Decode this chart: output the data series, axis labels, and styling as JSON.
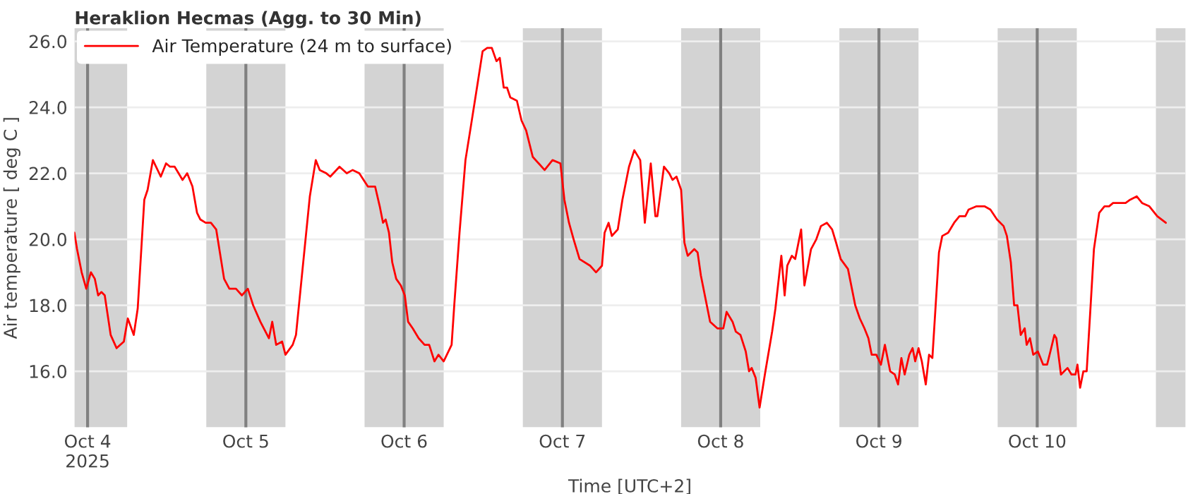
{
  "chart_data": {
    "type": "line",
    "title": "Heraklion Hecmas (Agg. to 30 Min)",
    "xlabel": "Time [UTC+2]",
    "ylabel": "Air temperature [ deg C ]",
    "series": [
      {
        "name": "Air Temperature (24 m to surface)",
        "color": "#ff0000",
        "x": [
          "2025-10-03T22:00",
          "2025-10-03T22:24",
          "2025-10-03T23:06",
          "2025-10-03T23:48",
          "2025-10-04T00:30",
          "2025-10-04T01:06",
          "2025-10-04T01:36",
          "2025-10-04T02:06",
          "2025-10-04T02:36",
          "2025-10-04T03:30",
          "2025-10-04T04:24",
          "2025-10-04T05:30",
          "2025-10-04T06:06",
          "2025-10-04T07:00",
          "2025-10-04T07:36",
          "2025-10-04T08:36",
          "2025-10-04T09:06",
          "2025-10-04T09:54",
          "2025-10-04T11:06",
          "2025-10-04T11:54",
          "2025-10-04T12:30",
          "2025-10-04T13:12",
          "2025-10-04T14:24",
          "2025-10-04T15:06",
          "2025-10-04T15:54",
          "2025-10-04T16:36",
          "2025-10-04T17:06",
          "2025-10-04T17:54",
          "2025-10-04T18:42",
          "2025-10-04T19:30",
          "2025-10-04T20:42",
          "2025-10-04T21:30",
          "2025-10-04T22:30",
          "2025-10-04T23:24",
          "2025-10-05T00:18",
          "2025-10-05T01:06",
          "2025-10-05T02:12",
          "2025-10-05T03:30",
          "2025-10-05T04:00",
          "2025-10-05T04:36",
          "2025-10-05T05:30",
          "2025-10-05T06:00",
          "2025-10-05T07:06",
          "2025-10-05T07:36",
          "2025-10-05T08:30",
          "2025-10-05T09:42",
          "2025-10-05T10:36",
          "2025-10-05T11:12",
          "2025-10-05T12:12",
          "2025-10-05T12:48",
          "2025-10-05T14:12",
          "2025-10-05T15:18",
          "2025-10-05T16:12",
          "2025-10-05T17:12",
          "2025-10-05T18:30",
          "2025-10-05T19:36",
          "2025-10-05T20:18",
          "2025-10-05T20:48",
          "2025-10-05T21:12",
          "2025-10-05T21:42",
          "2025-10-05T22:12",
          "2025-10-05T22:48",
          "2025-10-05T23:30",
          "2025-10-06T00:06",
          "2025-10-06T00:36",
          "2025-10-06T01:18",
          "2025-10-06T02:12",
          "2025-10-06T03:06",
          "2025-10-06T03:48",
          "2025-10-06T04:36",
          "2025-10-06T05:12",
          "2025-10-06T06:00",
          "2025-10-06T07:12",
          "2025-10-06T07:36",
          "2025-10-06T08:24",
          "2025-10-06T09:18",
          "2025-10-06T10:06",
          "2025-10-06T11:12",
          "2025-10-06T11:54",
          "2025-10-06T12:36",
          "2025-10-06T13:18",
          "2025-10-06T14:00",
          "2025-10-06T14:30",
          "2025-10-06T15:06",
          "2025-10-06T15:36",
          "2025-10-06T16:06",
          "2025-10-06T17:06",
          "2025-10-06T17:48",
          "2025-10-06T18:30",
          "2025-10-06T19:30",
          "2025-10-06T20:24",
          "2025-10-06T21:18",
          "2025-10-06T22:30",
          "2025-10-06T23:42",
          "2025-10-07T00:18",
          "2025-10-07T01:00",
          "2025-10-07T01:42",
          "2025-10-07T02:36",
          "2025-10-07T04:12",
          "2025-10-07T05:06",
          "2025-10-07T06:00",
          "2025-10-07T06:24",
          "2025-10-07T07:00",
          "2025-10-07T07:30",
          "2025-10-07T08:24",
          "2025-10-07T09:06",
          "2025-10-07T10:06",
          "2025-10-07T10:54",
          "2025-10-07T11:48",
          "2025-10-07T12:30",
          "2025-10-07T13:24",
          "2025-10-07T14:06",
          "2025-10-07T14:24",
          "2025-10-07T15:24",
          "2025-10-07T16:12",
          "2025-10-07T16:42",
          "2025-10-07T17:18",
          "2025-10-07T18:00",
          "2025-10-07T18:30",
          "2025-10-07T19:00",
          "2025-10-07T20:00",
          "2025-10-07T20:30",
          "2025-10-07T21:00",
          "2025-10-07T21:42",
          "2025-10-07T22:24",
          "2025-10-07T23:30",
          "2025-10-08T00:24",
          "2025-10-08T00:54",
          "2025-10-08T01:48",
          "2025-10-08T02:18",
          "2025-10-08T03:00",
          "2025-10-08T03:48",
          "2025-10-08T04:18",
          "2025-10-08T04:42",
          "2025-10-08T05:18",
          "2025-10-08T05:54",
          "2025-10-08T06:42",
          "2025-10-08T07:48",
          "2025-10-08T08:18",
          "2025-10-08T09:12",
          "2025-10-08T09:42",
          "2025-10-08T10:06",
          "2025-10-08T10:48",
          "2025-10-08T11:18",
          "2025-10-08T12:12",
          "2025-10-08T12:42",
          "2025-10-08T13:42",
          "2025-10-08T14:30",
          "2025-10-08T15:12",
          "2025-10-08T16:06",
          "2025-10-08T16:54",
          "2025-10-08T17:30",
          "2025-10-08T18:12",
          "2025-10-08T19:18",
          "2025-10-08T20:24",
          "2025-10-08T21:06",
          "2025-10-08T21:48",
          "2025-10-08T22:24",
          "2025-10-08T22:54",
          "2025-10-08T23:36",
          "2025-10-09T00:18",
          "2025-10-09T00:54",
          "2025-10-09T01:42",
          "2025-10-09T02:24",
          "2025-10-09T02:54",
          "2025-10-09T03:24",
          "2025-10-09T03:54",
          "2025-10-09T04:36",
          "2025-10-09T05:06",
          "2025-10-09T05:30",
          "2025-10-09T06:00",
          "2025-10-09T06:30",
          "2025-10-09T07:06",
          "2025-10-09T07:36",
          "2025-10-09T08:06",
          "2025-10-09T09:06",
          "2025-10-09T09:36",
          "2025-10-09T10:30",
          "2025-10-09T11:24",
          "2025-10-09T12:12",
          "2025-10-09T13:06",
          "2025-10-09T13:36",
          "2025-10-09T14:48",
          "2025-10-09T16:00",
          "2025-10-09T16:54",
          "2025-10-09T17:54",
          "2025-10-09T18:54",
          "2025-10-09T19:24",
          "2025-10-09T20:00",
          "2025-10-09T20:30",
          "2025-10-09T21:00",
          "2025-10-09T21:30",
          "2025-10-09T22:06",
          "2025-10-09T22:24",
          "2025-10-09T22:54",
          "2025-10-09T23:24",
          "2025-10-10T00:06",
          "2025-10-10T00:54",
          "2025-10-10T01:30",
          "2025-10-10T02:00",
          "2025-10-10T02:36",
          "2025-10-10T02:54",
          "2025-10-10T03:36",
          "2025-10-10T04:06",
          "2025-10-10T04:36",
          "2025-10-10T05:12",
          "2025-10-10T05:48",
          "2025-10-10T06:06",
          "2025-10-10T06:30",
          "2025-10-10T07:00",
          "2025-10-10T07:30",
          "2025-10-10T08:06",
          "2025-10-10T08:36",
          "2025-10-10T09:24",
          "2025-10-10T10:12",
          "2025-10-10T10:54",
          "2025-10-10T11:30",
          "2025-10-10T12:12",
          "2025-10-10T13:24",
          "2025-10-10T14:06",
          "2025-10-10T15:06",
          "2025-10-10T15:54",
          "2025-10-10T17:00",
          "2025-10-10T18:12",
          "2025-10-10T19:30"
        ],
        "values": [
          20.2,
          19.7,
          19.0,
          18.5,
          19.0,
          18.8,
          18.3,
          18.4,
          18.3,
          17.1,
          16.7,
          16.9,
          17.6,
          17.1,
          17.9,
          21.2,
          21.5,
          22.4,
          21.9,
          22.3,
          22.2,
          22.2,
          21.8,
          22.0,
          21.6,
          20.8,
          20.6,
          20.5,
          20.5,
          20.3,
          18.8,
          18.5,
          18.5,
          18.3,
          18.5,
          18.0,
          17.5,
          17.0,
          17.5,
          16.8,
          16.9,
          16.5,
          16.8,
          17.1,
          18.9,
          21.3,
          22.4,
          22.1,
          22.0,
          21.9,
          22.2,
          22.0,
          22.1,
          22.0,
          21.6,
          21.6,
          21.0,
          20.5,
          20.6,
          20.2,
          19.3,
          18.8,
          18.6,
          18.3,
          17.5,
          17.3,
          17.0,
          16.8,
          16.8,
          16.3,
          16.5,
          16.3,
          16.8,
          18.0,
          20.2,
          22.4,
          23.4,
          24.8,
          25.7,
          25.8,
          25.8,
          25.4,
          25.5,
          24.6,
          24.6,
          24.3,
          24.2,
          23.6,
          23.3,
          22.5,
          22.3,
          22.1,
          22.4,
          22.3,
          21.2,
          20.5,
          20.0,
          19.4,
          19.2,
          19.0,
          19.2,
          20.2,
          20.5,
          20.1,
          20.3,
          21.2,
          22.2,
          22.7,
          22.4,
          20.5,
          22.3,
          20.7,
          20.7,
          22.2,
          22.0,
          21.8,
          21.9,
          21.5,
          19.9,
          19.5,
          19.7,
          19.6,
          18.9,
          18.2,
          17.5,
          17.3,
          17.3,
          17.8,
          17.5,
          17.2,
          17.1,
          16.6,
          16.0,
          16.1,
          15.8,
          14.9,
          15.9,
          17.2,
          17.9,
          19.5,
          18.3,
          19.2,
          19.5,
          19.4,
          20.3,
          18.6,
          19.7,
          20.0,
          20.4,
          20.5,
          20.3,
          19.9,
          19.4,
          19.1,
          18.0,
          17.6,
          17.3,
          17.0,
          16.5,
          16.5,
          16.2,
          16.8,
          16.0,
          15.9,
          15.6,
          16.4,
          15.9,
          16.5,
          16.7,
          16.3,
          16.7,
          16.3,
          15.6,
          16.5,
          16.4,
          19.6,
          20.1,
          20.2,
          20.5,
          20.7,
          20.7,
          20.9,
          21.0,
          21.0,
          20.9,
          20.6,
          20.4,
          20.1,
          19.3,
          18.0,
          18.0,
          17.1,
          17.3,
          16.8,
          17.0,
          16.5,
          16.6,
          16.2,
          16.2,
          16.6,
          17.1,
          17.0,
          15.9,
          16.0,
          16.1,
          15.9,
          15.9,
          16.2,
          15.5,
          16.0,
          16.0,
          18.0,
          19.7,
          20.8,
          21.0,
          21.0,
          21.1,
          21.1,
          21.1,
          21.2,
          21.3,
          21.1,
          21.0,
          20.7,
          20.5
        ]
      }
    ],
    "xlim": [
      "2025-10-03T22:00",
      "2025-10-10T22:30"
    ],
    "xticks": [
      {
        "value": "2025-10-04",
        "label": "Oct 4\n2025"
      },
      {
        "value": "2025-10-05",
        "label": "Oct 5"
      },
      {
        "value": "2025-10-06",
        "label": "Oct 6"
      },
      {
        "value": "2025-10-07",
        "label": "Oct 7"
      },
      {
        "value": "2025-10-08",
        "label": "Oct 8"
      },
      {
        "value": "2025-10-09",
        "label": "Oct 9"
      },
      {
        "value": "2025-10-10",
        "label": "Oct 10"
      }
    ],
    "ylim": [
      14.3,
      26.4
    ],
    "yticks": [
      {
        "value": 16,
        "label": "16.0"
      },
      {
        "value": 18,
        "label": "18.0"
      },
      {
        "value": 20,
        "label": "20.0"
      },
      {
        "value": 22,
        "label": "22.0"
      },
      {
        "value": 24,
        "label": "24.0"
      },
      {
        "value": 26,
        "label": "26.0"
      }
    ],
    "bands": [
      {
        "axis": "x",
        "from": "2025-10-03T22:00",
        "to": "2025-10-04T06:00",
        "color": "#d3d3d3"
      },
      {
        "axis": "x",
        "from": "2025-10-04T18:00",
        "to": "2025-10-05T06:00",
        "color": "#d3d3d3"
      },
      {
        "axis": "x",
        "from": "2025-10-05T18:00",
        "to": "2025-10-06T06:00",
        "color": "#d3d3d3"
      },
      {
        "axis": "x",
        "from": "2025-10-06T18:00",
        "to": "2025-10-07T06:00",
        "color": "#d3d3d3"
      },
      {
        "axis": "x",
        "from": "2025-10-07T18:00",
        "to": "2025-10-08T06:00",
        "color": "#d3d3d3"
      },
      {
        "axis": "x",
        "from": "2025-10-08T18:00",
        "to": "2025-10-09T06:00",
        "color": "#d3d3d3"
      },
      {
        "axis": "x",
        "from": "2025-10-09T18:00",
        "to": "2025-10-10T06:00",
        "color": "#d3d3d3"
      },
      {
        "axis": "x",
        "from": "2025-10-10T18:00",
        "to": "2025-10-10T22:30",
        "color": "#d3d3d3"
      }
    ],
    "ref_lines": [
      {
        "axis": "x",
        "value": "2025-10-04",
        "color": "#808080"
      },
      {
        "axis": "x",
        "value": "2025-10-05",
        "color": "#808080"
      },
      {
        "axis": "x",
        "value": "2025-10-06",
        "color": "#808080"
      },
      {
        "axis": "x",
        "value": "2025-10-07",
        "color": "#808080"
      },
      {
        "axis": "x",
        "value": "2025-10-08",
        "color": "#808080"
      },
      {
        "axis": "x",
        "value": "2025-10-09",
        "color": "#808080"
      },
      {
        "axis": "x",
        "value": "2025-10-10",
        "color": "#808080"
      }
    ],
    "grid": "y",
    "legend": "top left",
    "line_style": "solid",
    "marker": "none"
  }
}
